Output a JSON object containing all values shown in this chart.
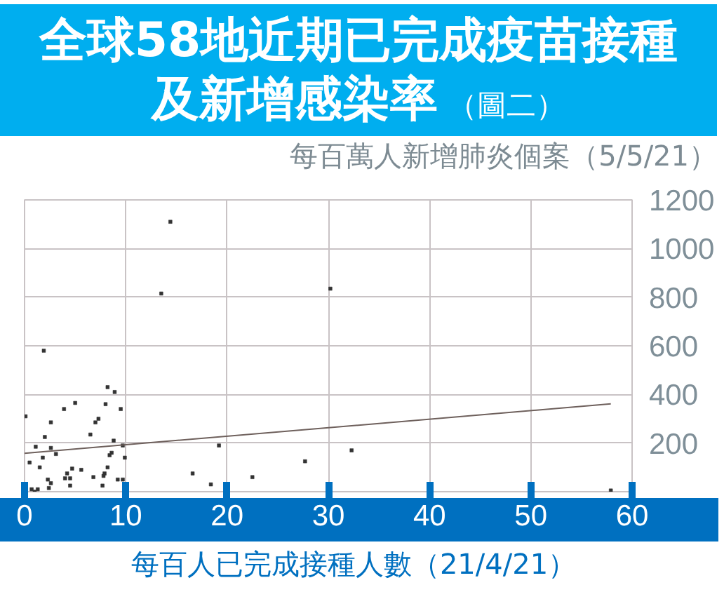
{
  "chart_data": {
    "type": "scatter",
    "title": "全球58地近期已完成疫苗接種及新增感染率",
    "subtitle": "（圖二）",
    "ylabel": "每百萬人新增肺炎個案（5/5/21）",
    "xlabel": "每百人已完成接種人數（21/4/21）",
    "xlim": [
      0,
      60
    ],
    "xticks": [
      0,
      10,
      20,
      30,
      40,
      50,
      60
    ],
    "ylim": [
      0,
      1200
    ],
    "yticks": [
      200,
      400,
      600,
      800,
      1000,
      1200
    ],
    "grid": true,
    "series": [
      {
        "marker": "square",
        "color": "#333333",
        "x": [
          14.4,
          13.5,
          1.9,
          8.2,
          8.9,
          5.0,
          8.0,
          3.9,
          9.5,
          0.1,
          7.3,
          7.0,
          2.6,
          2.0,
          6.5,
          8.8,
          9.7,
          1.1,
          2.6,
          3.1,
          8.6,
          8.4,
          1.8,
          9.9,
          0.5,
          1.5,
          4.7,
          8.2,
          5.6,
          4.2,
          7.9,
          7.8,
          2.3,
          4.0,
          4.5,
          6.8,
          9.2,
          9.7,
          2.6,
          4.5,
          2.4,
          7.7,
          0.7,
          1.0,
          1.3,
          19.2,
          16.6,
          18.4,
          22.5,
          27.7,
          30.2,
          32.3,
          57.9
        ],
        "values": [
          1110,
          815,
          580,
          430,
          410,
          365,
          360,
          340,
          340,
          310,
          300,
          285,
          285,
          225,
          235,
          210,
          190,
          185,
          180,
          155,
          160,
          150,
          140,
          140,
          120,
          100,
          95,
          100,
          90,
          75,
          75,
          65,
          50,
          55,
          55,
          60,
          50,
          50,
          35,
          25,
          15,
          25,
          10,
          0,
          10,
          190,
          75,
          30,
          60,
          125,
          835,
          170,
          5
        ]
      },
      {
        "type": "line",
        "color": "#6e605c",
        "x": [
          0,
          57.9
        ],
        "values": [
          158,
          361
        ]
      }
    ]
  }
}
